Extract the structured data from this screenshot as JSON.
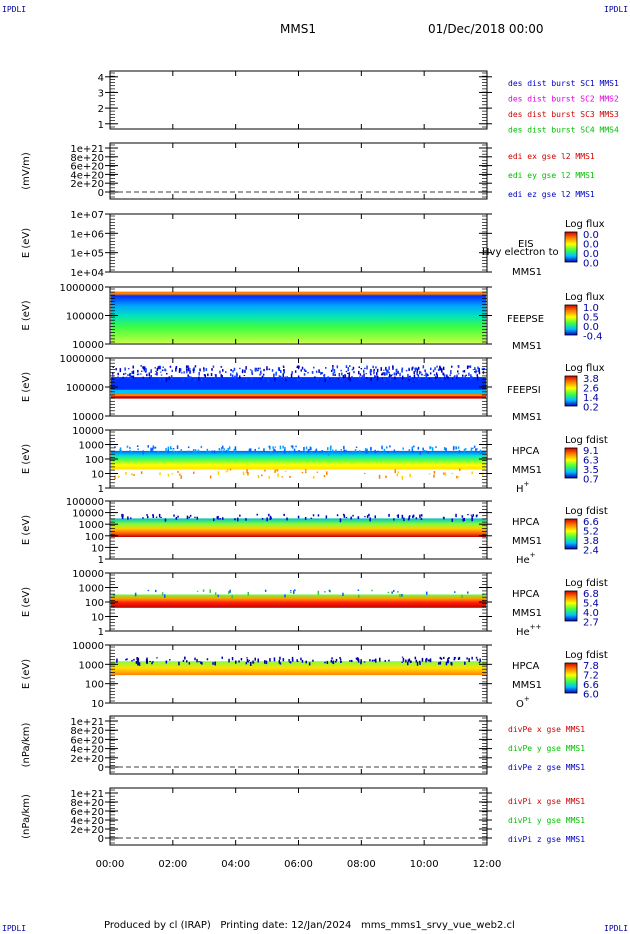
{
  "corner_text": "IPDLI",
  "header": {
    "mission": "MMS1",
    "datetime": "01/Dec/2018 00:00"
  },
  "footer": {
    "produced": "Produced by cl (IRAP)",
    "printing": "Printing date: 12/Jan/2024",
    "file": "mms_mms1_srvy_vue_web2.cl"
  },
  "colors": {
    "blue": "#0000c0",
    "magenta": "#e000e0",
    "red": "#d00000",
    "green": "#00c000",
    "axis": "#000000"
  },
  "chart_data": [
    {
      "type": "line",
      "id": "dist",
      "ylabel": "",
      "ylim": [
        0.5,
        4.5
      ],
      "tick_labels": [
        "4",
        "3",
        "2",
        "1"
      ],
      "series": [
        {
          "name": "des dist burst SC1 MMS1",
          "color": "#0000c0"
        },
        {
          "name": "des dist burst SC2 MMS2",
          "color": "#e000e0"
        },
        {
          "name": "des dist burst SC3 MMS3",
          "color": "#d00000"
        },
        {
          "name": "des dist burst SC4 MMS4",
          "color": "#00c000"
        }
      ]
    },
    {
      "type": "line",
      "id": "edi",
      "ylabel": "(mV/m)",
      "tick_labels": [
        "1e+21",
        "8e+20",
        "6e+20",
        "4e+20",
        "2e+20",
        "0"
      ],
      "series": [
        {
          "name": "edi ex gse l2 MMS1",
          "color": "#d00000"
        },
        {
          "name": "edi ey gse l2 MMS1",
          "color": "#00c000"
        },
        {
          "name": "edi ez gse l2 MMS1",
          "color": "#0000c0"
        }
      ]
    },
    {
      "type": "heatmap",
      "id": "eis",
      "ylabel": "E (eV)",
      "tick_labels": [
        "1e+07",
        "1e+06",
        "1e+05",
        "1e+04"
      ],
      "labels": [
        "EIS",
        "MMS1"
      ],
      "overlay": "Hvy electron to",
      "colorbar": {
        "title": "Log flux",
        "ticks": [
          "0.0",
          "0.0",
          "0.0",
          "0.0"
        ]
      }
    },
    {
      "type": "heatmap",
      "id": "feepse",
      "ylabel": "E (eV)",
      "tick_labels": [
        "1000000",
        "100000",
        "10000"
      ],
      "labels": [
        "FEEPSE",
        "MMS1"
      ],
      "colorbar": {
        "title": "Log flux",
        "ticks": [
          "1.0",
          "0.5",
          "0.0",
          "-0.4"
        ]
      }
    },
    {
      "type": "heatmap",
      "id": "feepsi",
      "ylabel": "E (eV)",
      "tick_labels": [
        "1000000",
        "100000",
        "10000"
      ],
      "labels": [
        "FEEPSI",
        "MMS1"
      ],
      "colorbar": {
        "title": "Log flux",
        "ticks": [
          "3.8",
          "2.6",
          "1.4",
          "0.2"
        ]
      }
    },
    {
      "type": "heatmap",
      "id": "hpca_h",
      "ylabel": "E (eV)",
      "tick_labels": [
        "10000",
        "1000",
        "100",
        "10",
        "1"
      ],
      "labels": [
        "HPCA",
        "MMS1"
      ],
      "species": "H",
      "charge": "+",
      "colorbar": {
        "title": "Log fdist",
        "ticks": [
          "9.1",
          "6.3",
          "3.5",
          "0.7"
        ]
      }
    },
    {
      "type": "heatmap",
      "id": "hpca_he",
      "ylabel": "E (eV)",
      "tick_labels": [
        "100000",
        "10000",
        "1000",
        "100",
        "10",
        "1"
      ],
      "labels": [
        "HPCA",
        "MMS1"
      ],
      "species": "He",
      "charge": "+",
      "colorbar": {
        "title": "Log fdist",
        "ticks": [
          "6.6",
          "5.2",
          "3.8",
          "2.4"
        ]
      }
    },
    {
      "type": "heatmap",
      "id": "hpca_hepp",
      "ylabel": "E (eV)",
      "tick_labels": [
        "10000",
        "1000",
        "100",
        "10",
        "1"
      ],
      "labels": [
        "HPCA",
        "MMS1"
      ],
      "species": "He",
      "charge": "++",
      "colorbar": {
        "title": "Log fdist",
        "ticks": [
          "6.8",
          "5.4",
          "4.0",
          "2.7"
        ]
      }
    },
    {
      "type": "heatmap",
      "id": "hpca_o",
      "ylabel": "E (eV)",
      "tick_labels": [
        "10000",
        "1000",
        "100",
        "10"
      ],
      "labels": [
        "HPCA",
        "MMS1"
      ],
      "species": "O",
      "charge": "+",
      "colorbar": {
        "title": "Log fdist",
        "ticks": [
          "7.8",
          "7.2",
          "6.6",
          "6.0"
        ]
      }
    },
    {
      "type": "line",
      "id": "divpe",
      "ylabel": "(nPa/km)",
      "tick_labels": [
        "1e+21",
        "8e+20",
        "6e+20",
        "4e+20",
        "2e+20",
        "0"
      ],
      "series": [
        {
          "name": "divPe x gse MMS1",
          "color": "#d00000"
        },
        {
          "name": "divPe y gse MMS1",
          "color": "#00c000"
        },
        {
          "name": "divPe z gse MMS1",
          "color": "#0000c0"
        }
      ]
    },
    {
      "type": "line",
      "id": "divpi",
      "ylabel": "(nPa/km)",
      "tick_labels": [
        "1e+21",
        "8e+20",
        "6e+20",
        "4e+20",
        "2e+20",
        "0"
      ],
      "series": [
        {
          "name": "divPi x gse MMS1",
          "color": "#d00000"
        },
        {
          "name": "divPi y gse MMS1",
          "color": "#00c000"
        },
        {
          "name": "divPi z gse MMS1",
          "color": "#0000c0"
        }
      ]
    }
  ],
  "x_axis": {
    "tick_labels": [
      "00:00",
      "02:00",
      "04:00",
      "06:00",
      "08:00",
      "10:00",
      "12:00"
    ]
  }
}
